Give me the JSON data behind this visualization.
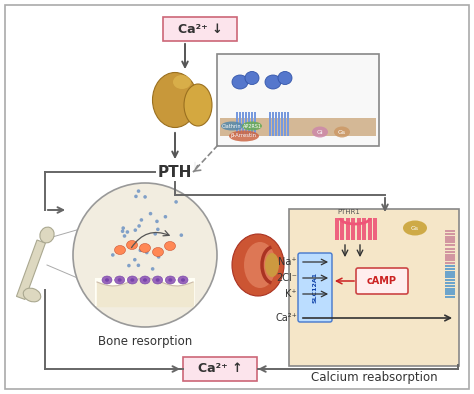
{
  "bg_color": "#ffffff",
  "ca2_down_label": "Ca²⁺ ↓",
  "ca2_up_label": "Ca²⁺ ↑",
  "pth_label": "PTH",
  "bone_label": "Bone resorption",
  "calcium_label": "Calcium reabsorption",
  "na_label": "Na⁺",
  "cl_label": "2Cl⁻",
  "k_label": "K⁺",
  "ca_label": "Ca²⁺",
  "camp_label": "cAMP",
  "slc_label": "SLC12A1",
  "pthr_label": "PTHR1",
  "beta_label": "β-Arrestin",
  "clath_label": "Clathrin",
  "ap_label": "AP2RS1",
  "fig_width": 4.74,
  "fig_height": 3.94,
  "dpi": 100
}
